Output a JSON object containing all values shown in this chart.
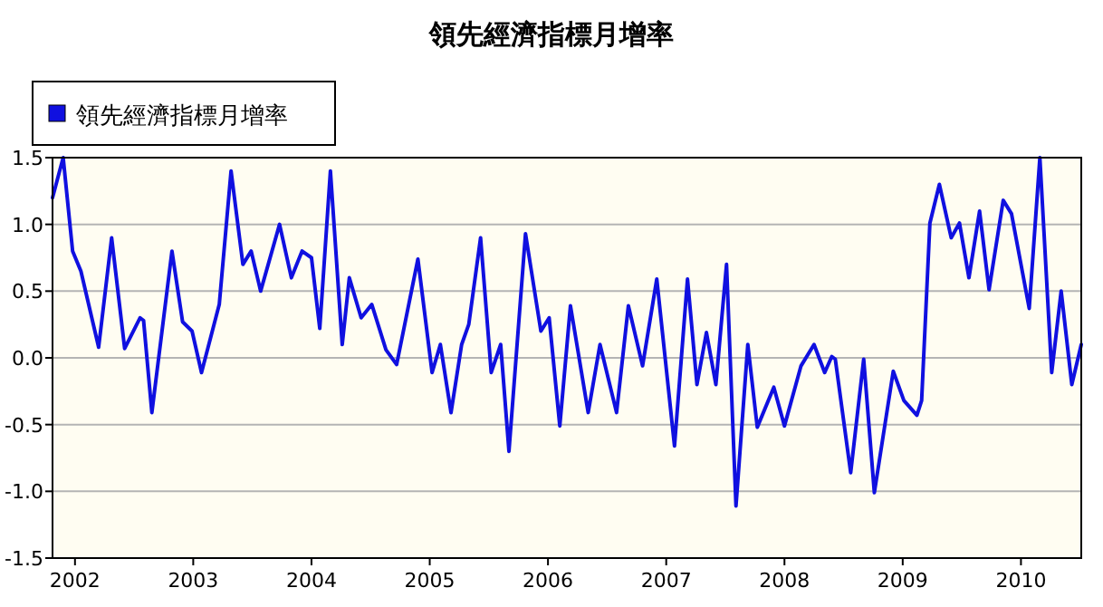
{
  "chart_data": {
    "type": "line",
    "title": "領先經濟指標月增率",
    "legend": "top left",
    "grid": "y",
    "marker": "none",
    "line_style": "solid",
    "xlim": [
      2001.81,
      2010.51
    ],
    "xticks": [
      2002,
      2003,
      2004,
      2005,
      2006,
      2007,
      2008,
      2009,
      2010
    ],
    "ylim": [
      -1.5,
      1.5
    ],
    "yticks": [
      {
        "value": -1.5,
        "label": "-1.5"
      },
      {
        "value": -1,
        "label": "-1.0"
      },
      {
        "value": -0.5,
        "label": "-0.5"
      },
      {
        "value": 0,
        "label": "0.0"
      },
      0.5,
      {
        "value": 1,
        "label": "1.0"
      },
      1.5
    ],
    "series": [
      {
        "name": "領先經濟指標月增率",
        "color": "#1010e0",
        "x": [
          2001.81,
          2001.9,
          2001.98,
          2002.05,
          2002.2,
          2002.31,
          2002.42,
          2002.55,
          2002.58,
          2002.65,
          2002.82,
          2002.91,
          2002.99,
          2003.07,
          2003.22,
          2003.32,
          2003.42,
          2003.49,
          2003.57,
          2003.73,
          2003.83,
          2003.92,
          2004.0,
          2004.07,
          2004.16,
          2004.26,
          2004.32,
          2004.42,
          2004.51,
          2004.63,
          2004.72,
          2004.9,
          2005.02,
          2005.09,
          2005.18,
          2005.27,
          2005.33,
          2005.43,
          2005.52,
          2005.6,
          2005.67,
          2005.81,
          2005.94,
          2006.01,
          2006.1,
          2006.19,
          2006.34,
          2006.44,
          2006.58,
          2006.68,
          2006.8,
          2006.92,
          2007.07,
          2007.18,
          2007.26,
          2007.34,
          2007.42,
          2007.51,
          2007.59,
          2007.69,
          2007.77,
          2007.91,
          2008.0,
          2008.14,
          2008.25,
          2008.34,
          2008.4,
          2008.43,
          2008.56,
          2008.67,
          2008.76,
          2008.92,
          2009.01,
          2009.12,
          2009.16,
          2009.23,
          2009.31,
          2009.41,
          2009.48,
          2009.56,
          2009.65,
          2009.73,
          2009.85,
          2009.92,
          2010.07,
          2010.16,
          2010.26,
          2010.34,
          2010.43,
          2010.51
        ],
        "values": [
          1.2,
          1.5,
          0.8,
          0.65,
          0.08,
          0.9,
          0.07,
          0.3,
          0.28,
          -0.41,
          0.8,
          0.27,
          0.2,
          -0.11,
          0.4,
          1.4,
          0.7,
          0.8,
          0.5,
          1.0,
          0.6,
          0.8,
          0.75,
          0.22,
          1.4,
          0.1,
          0.6,
          0.3,
          0.4,
          0.06,
          -0.05,
          0.74,
          -0.11,
          0.1,
          -0.41,
          0.1,
          0.25,
          0.9,
          -0.11,
          0.1,
          -0.7,
          0.93,
          0.2,
          0.3,
          -0.51,
          0.39,
          -0.41,
          0.1,
          -0.41,
          0.39,
          -0.06,
          0.59,
          -0.66,
          0.59,
          -0.2,
          0.19,
          -0.2,
          0.7,
          -1.11,
          0.1,
          -0.52,
          -0.22,
          -0.51,
          -0.06,
          0.1,
          -0.11,
          0.01,
          -0.01,
          -0.86,
          -0.01,
          -1.01,
          -0.1,
          -0.32,
          -0.43,
          -0.32,
          1.01,
          1.3,
          0.9,
          1.01,
          0.6,
          1.1,
          0.51,
          1.18,
          1.08,
          0.37,
          1.5,
          -0.11,
          0.5,
          -0.2,
          0.1
        ]
      }
    ]
  }
}
